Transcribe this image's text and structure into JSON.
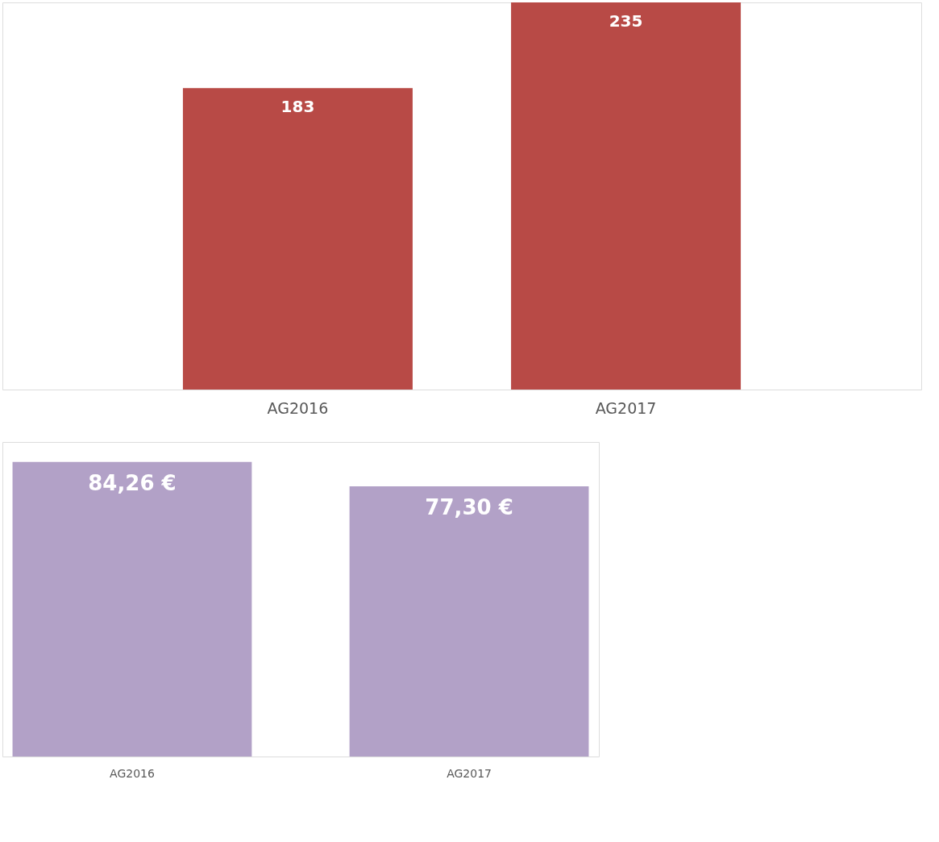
{
  "chart_data": [
    {
      "type": "bar",
      "categories": [
        "AG2016",
        "AG2017"
      ],
      "values": [
        183,
        235
      ],
      "color": "#b84a46",
      "data_labels": true,
      "ylim": [
        0,
        235
      ],
      "tick_labels": "x",
      "grid": false
    },
    {
      "type": "bar",
      "categories": [
        "AG2016",
        "AG2017"
      ],
      "values": [
        84.26,
        77.3
      ],
      "value_labels": [
        "84,26 €",
        "77,30 €"
      ],
      "color": "#b2a1c7",
      "tick_labels": "x",
      "grid": false
    }
  ]
}
